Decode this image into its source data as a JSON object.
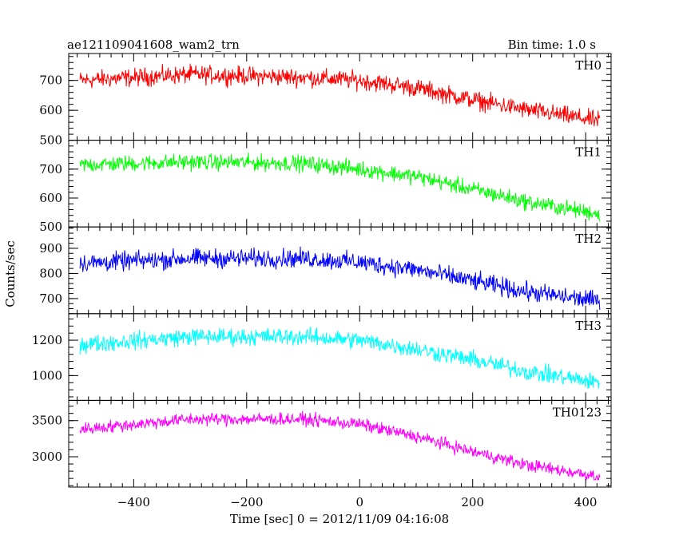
{
  "chart_data": {
    "type": "line",
    "title": "ae121109041608_wam2_trn",
    "bin_time_label": "Bin time: 1.0 s",
    "xlabel": "Time [sec] 0 = 2012/11/09 04:16:08",
    "ylabel": "Counts/sec",
    "xlim": [
      -515,
      445
    ],
    "x_ticks": [
      -400,
      -200,
      0,
      200,
      400
    ],
    "x_tick_labels": [
      "−400",
      "−200",
      "0",
      "200",
      "400"
    ],
    "x_range": [
      -495,
      425
    ],
    "grid": false,
    "panels": [
      {
        "name": "TH0",
        "color": "#ff0000",
        "ylim": [
          500,
          790
        ],
        "y_ticks": [
          500,
          600,
          700
        ],
        "y_tick_labels": [
          "500",
          "600",
          "700"
        ],
        "trend": [
          [
            -495,
            700
          ],
          [
            -300,
            720
          ],
          [
            -100,
            710
          ],
          [
            0,
            700
          ],
          [
            100,
            675
          ],
          [
            200,
            635
          ],
          [
            300,
            600
          ],
          [
            425,
            565
          ]
        ],
        "noise": 26
      },
      {
        "name": "TH1",
        "color": "#00ff00",
        "ylim": [
          500,
          800
        ],
        "y_ticks": [
          500,
          600,
          700
        ],
        "y_tick_labels": [
          "500",
          "600",
          "700"
        ],
        "trend": [
          [
            -495,
            715
          ],
          [
            -300,
            725
          ],
          [
            -100,
            720
          ],
          [
            0,
            700
          ],
          [
            100,
            675
          ],
          [
            200,
            630
          ],
          [
            300,
            585
          ],
          [
            425,
            545
          ]
        ],
        "noise": 24
      },
      {
        "name": "TH2",
        "color": "#0000ff",
        "ylim": [
          640,
          985
        ],
        "y_ticks": [
          700,
          800,
          900
        ],
        "y_tick_labels": [
          "700",
          "800",
          "900"
        ],
        "trend": [
          [
            -495,
            840
          ],
          [
            -300,
            860
          ],
          [
            -100,
            860
          ],
          [
            0,
            845
          ],
          [
            100,
            815
          ],
          [
            200,
            770
          ],
          [
            300,
            725
          ],
          [
            425,
            690
          ]
        ],
        "noise": 32
      },
      {
        "name": "TH3",
        "color": "#00ffff",
        "ylim": [
          860,
          1350
        ],
        "y_ticks": [
          1000,
          1200
        ],
        "y_tick_labels": [
          "1000",
          "1200"
        ],
        "trend": [
          [
            -495,
            1175
          ],
          [
            -300,
            1220
          ],
          [
            -100,
            1220
          ],
          [
            0,
            1200
          ],
          [
            100,
            1150
          ],
          [
            200,
            1090
          ],
          [
            300,
            1020
          ],
          [
            425,
            960
          ]
        ],
        "noise": 42
      },
      {
        "name": "TH0123",
        "color": "#ff00ff",
        "ylim": [
          2580,
          3780
        ],
        "y_ticks": [
          3000,
          3500
        ],
        "y_tick_labels": [
          "3000",
          "3500"
        ],
        "trend": [
          [
            -495,
            3380
          ],
          [
            -300,
            3520
          ],
          [
            -100,
            3520
          ],
          [
            0,
            3450
          ],
          [
            100,
            3280
          ],
          [
            200,
            3070
          ],
          [
            300,
            2880
          ],
          [
            425,
            2730
          ]
        ],
        "noise": 75
      }
    ]
  }
}
